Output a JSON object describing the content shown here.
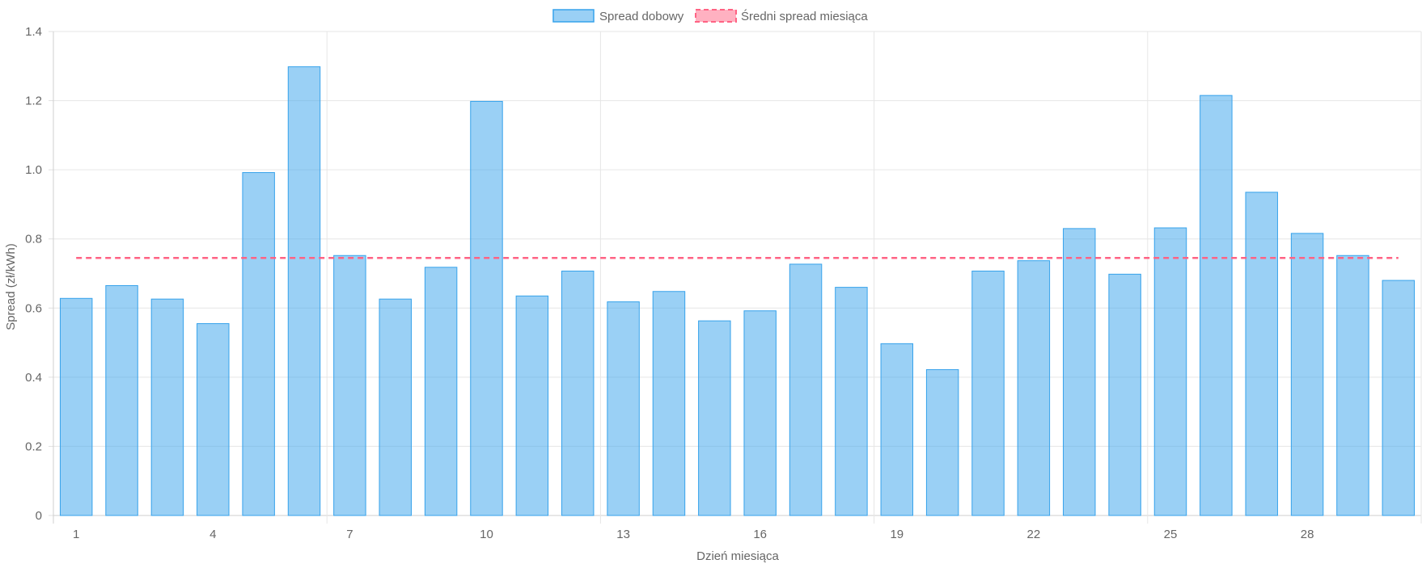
{
  "chart_data": {
    "type": "bar",
    "categories": [
      1,
      2,
      3,
      4,
      5,
      6,
      7,
      8,
      9,
      10,
      11,
      12,
      13,
      14,
      15,
      16,
      17,
      18,
      19,
      20,
      21,
      22,
      23,
      24,
      25,
      26,
      27,
      28,
      29,
      30
    ],
    "x_tick_labels": [
      "1",
      "4",
      "7",
      "10",
      "13",
      "16",
      "19",
      "22",
      "25",
      "28"
    ],
    "y_tick_labels": [
      "0",
      "0.2",
      "0.4",
      "0.6",
      "0.8",
      "1.0",
      "1.2",
      "1.4"
    ],
    "series": [
      {
        "name": "Spread dobowy",
        "type": "bar",
        "color": "#36a2eb",
        "values": [
          0.628,
          0.665,
          0.626,
          0.555,
          0.992,
          1.298,
          0.752,
          0.626,
          0.718,
          1.198,
          0.635,
          0.707,
          0.618,
          0.648,
          0.563,
          0.592,
          0.727,
          0.66,
          0.497,
          0.422,
          0.707,
          0.737,
          0.83,
          0.698,
          0.832,
          1.215,
          0.935,
          0.816,
          0.752,
          0.68
        ]
      },
      {
        "name": "Średni spread miesiąca",
        "type": "line",
        "style": "dashed",
        "color": "#ff6384",
        "value": 0.745
      }
    ],
    "xlabel": "Dzień miesiąca",
    "ylabel": "Spread (zł/kWh)",
    "ylim": [
      0,
      1.4
    ],
    "grid": true,
    "legend_position": "top-center"
  }
}
